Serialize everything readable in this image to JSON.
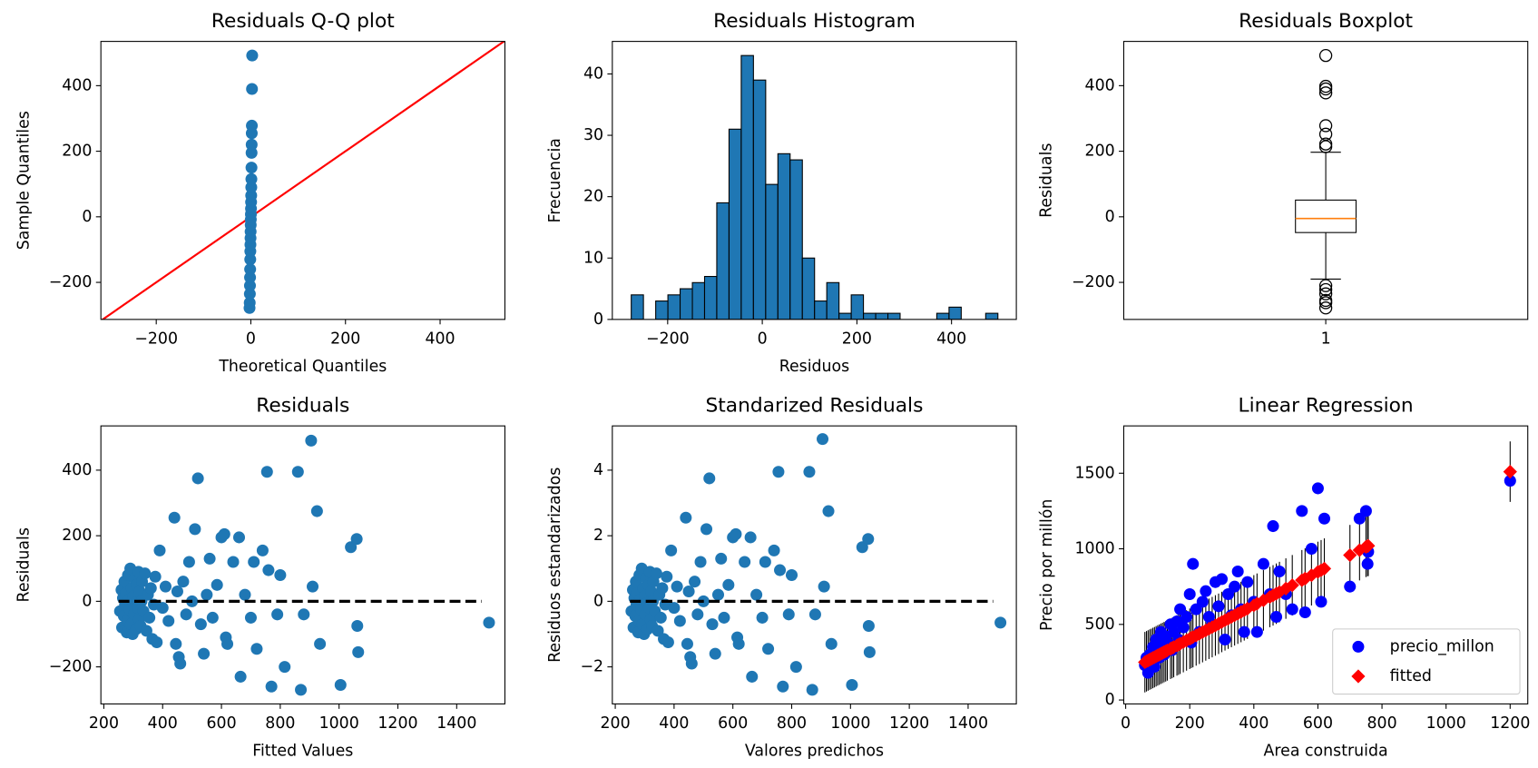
{
  "chart_data": [
    {
      "type": "qq",
      "title": "Residuals Q-Q plot",
      "xlabel": "Theoretical Quantiles",
      "ylabel": "Sample Quantiles",
      "x": [
        -2.8,
        -2.4,
        -2.1,
        -1.9,
        -1.7,
        -1.5,
        -1.3,
        -1.1,
        -0.9,
        -0.7,
        -0.5,
        -0.3,
        -0.1,
        0.1,
        0.3,
        0.5,
        0.7,
        0.9,
        1.1,
        1.3,
        1.5,
        1.7,
        1.9,
        2.1,
        2.4,
        2.8
      ],
      "values": [
        -278,
        -262,
        -235,
        -210,
        -185,
        -160,
        -130,
        -105,
        -85,
        -65,
        -45,
        -25,
        -8,
        8,
        25,
        45,
        65,
        90,
        115,
        150,
        195,
        220,
        255,
        278,
        390,
        492
      ],
      "color": "#1f77b4",
      "line_color": "#ff0000",
      "xlim": [
        -317,
        537
      ],
      "ylim": [
        -313,
        535
      ],
      "xticks": [
        {
          "value": -200,
          "label": "−200"
        },
        0,
        200,
        400
      ],
      "yticks": [
        {
          "value": -200,
          "label": "−200"
        },
        0,
        200,
        400
      ]
    },
    {
      "type": "histogram",
      "title": "Residuals Histogram",
      "xlabel": "Residuos",
      "ylabel": "Frecuencia",
      "bins": [
        -277.0,
        -251.2,
        -225.3,
        -199.5,
        -173.7,
        -147.8,
        -122.0,
        -96.2,
        -70.3,
        -44.5,
        -18.7,
        7.2,
        33.0,
        58.8,
        84.7,
        110.5,
        136.3,
        162.2,
        188.0,
        213.8,
        239.7,
        265.5,
        291.3,
        317.2,
        343.0,
        368.8,
        394.7,
        420.5,
        446.3,
        472.2,
        498.0
      ],
      "values": [
        4,
        0,
        3,
        4,
        5,
        6,
        7,
        19,
        31,
        43,
        39,
        22,
        27,
        26,
        10,
        3,
        6,
        1,
        4,
        1,
        1,
        1,
        0,
        0,
        0,
        1,
        2,
        0,
        0,
        1
      ],
      "color": "#1f77b4",
      "edgecolor": "#000000",
      "xlim": [
        -317,
        537
      ],
      "ylim": [
        0,
        45.3
      ],
      "xticks": [
        {
          "value": -200,
          "label": "−200"
        },
        0,
        200,
        400
      ],
      "yticks": [
        0,
        10,
        20,
        30,
        40
      ]
    },
    {
      "type": "boxplot",
      "title": "Residuals Boxplot",
      "ylabel": "Residuals",
      "boxes": [
        {
          "position": 1,
          "whislo": -190,
          "q1": -48,
          "med": -5,
          "q3": 51,
          "whishi": 197,
          "fliers": [
            492,
            398,
            390,
            378,
            278,
            252,
            222,
            214,
            -210,
            -222,
            -235,
            -255,
            -262,
            -278
          ]
        }
      ],
      "median_color": "#ff7f0e",
      "xlim": [
        0.5,
        1.5
      ],
      "ylim": [
        -313,
        535
      ],
      "xticks": [
        1
      ],
      "yticks": [
        {
          "value": -200,
          "label": "−200"
        },
        0,
        200,
        400
      ]
    },
    {
      "type": "scatter",
      "title": "Residuals",
      "xlabel": "Fitted Values",
      "ylabel": "Residuals",
      "x": [
        255,
        260,
        262,
        265,
        268,
        270,
        272,
        275,
        278,
        280,
        282,
        285,
        288,
        290,
        292,
        295,
        298,
        300,
        302,
        305,
        308,
        310,
        312,
        315,
        318,
        320,
        322,
        325,
        328,
        330,
        335,
        340,
        345,
        350,
        355,
        360,
        365,
        370,
        375,
        380,
        390,
        400,
        410,
        420,
        440,
        445,
        450,
        455,
        460,
        470,
        480,
        490,
        500,
        510,
        520,
        530,
        540,
        550,
        560,
        570,
        585,
        600,
        610,
        615,
        620,
        640,
        660,
        665,
        680,
        700,
        710,
        720,
        740,
        755,
        760,
        770,
        790,
        800,
        815,
        860,
        870,
        880,
        905,
        910,
        925,
        935,
        1005,
        1040,
        1060,
        1062,
        1065,
        1510
      ],
      "values": [
        -30,
        35,
        -80,
        10,
        -45,
        60,
        -10,
        25,
        -95,
        -60,
        80,
        5,
        -25,
        100,
        -70,
        40,
        -100,
        15,
        -40,
        70,
        -5,
        -85,
        50,
        -20,
        90,
        -55,
        30,
        -75,
        0,
        60,
        -30,
        85,
        -90,
        20,
        -50,
        40,
        -115,
        -10,
        75,
        -125,
        155,
        -20,
        45,
        -60,
        255,
        -130,
        30,
        -170,
        -190,
        60,
        -40,
        120,
        0,
        220,
        375,
        -70,
        -160,
        20,
        130,
        -50,
        50,
        195,
        205,
        -110,
        -130,
        120,
        195,
        -230,
        20,
        -50,
        120,
        -145,
        155,
        395,
        95,
        -260,
        -40,
        80,
        -200,
        395,
        -270,
        -40,
        490,
        45,
        275,
        -130,
        -255,
        165,
        190,
        -75,
        -155,
        -65
      ],
      "color": "#1f77b4",
      "hline": {
        "y": 0,
        "x": [
          250,
          1485
        ]
      },
      "xlim": [
        190,
        1564
      ],
      "ylim": [
        -313,
        535
      ],
      "xticks": [
        200,
        400,
        600,
        800,
        1000,
        1200,
        1400
      ],
      "yticks": [
        {
          "value": -200,
          "label": "−200"
        },
        0,
        200,
        400
      ]
    },
    {
      "type": "scatter",
      "title": "Standarized Residuals",
      "xlabel": "Valores predichos",
      "ylabel": "Residuos estandarizados",
      "x": [
        255,
        260,
        262,
        265,
        268,
        270,
        272,
        275,
        278,
        280,
        282,
        285,
        288,
        290,
        292,
        295,
        298,
        300,
        302,
        305,
        308,
        310,
        312,
        315,
        318,
        320,
        322,
        325,
        328,
        330,
        335,
        340,
        345,
        350,
        355,
        360,
        365,
        370,
        375,
        380,
        390,
        400,
        410,
        420,
        440,
        445,
        450,
        455,
        460,
        470,
        480,
        490,
        500,
        510,
        520,
        530,
        540,
        550,
        560,
        570,
        585,
        600,
        610,
        615,
        620,
        640,
        660,
        665,
        680,
        700,
        710,
        720,
        740,
        755,
        760,
        770,
        790,
        800,
        815,
        860,
        870,
        880,
        905,
        910,
        925,
        935,
        1005,
        1040,
        1060,
        1062,
        1065,
        1510
      ],
      "values": [
        -0.3,
        0.35,
        -0.8,
        0.1,
        -0.45,
        0.6,
        -0.1,
        0.25,
        -0.95,
        -0.6,
        0.8,
        0.05,
        -0.25,
        1.0,
        -0.7,
        0.4,
        -1.0,
        0.15,
        -0.4,
        0.7,
        -0.05,
        -0.85,
        0.5,
        -0.2,
        0.9,
        -0.55,
        0.3,
        -0.75,
        0,
        0.6,
        -0.3,
        0.85,
        -0.9,
        0.2,
        -0.5,
        0.4,
        -1.15,
        -0.1,
        0.75,
        -1.25,
        1.55,
        -0.2,
        0.45,
        -0.6,
        2.55,
        -1.3,
        0.3,
        -1.7,
        -1.9,
        0.6,
        -0.4,
        1.2,
        0,
        2.2,
        3.75,
        -0.7,
        -1.6,
        0.2,
        1.3,
        -0.5,
        0.5,
        1.95,
        2.05,
        -1.1,
        -1.3,
        1.2,
        1.95,
        -2.3,
        0.2,
        -0.5,
        1.2,
        -1.45,
        1.55,
        3.95,
        0.95,
        -2.6,
        -0.4,
        0.8,
        -2.0,
        3.95,
        -2.7,
        -0.4,
        4.95,
        0.45,
        2.75,
        -1.3,
        -2.55,
        1.65,
        1.9,
        -0.75,
        -1.55,
        -0.65
      ],
      "color": "#1f77b4",
      "hline": {
        "y": 0,
        "x": [
          250,
          1485
        ]
      },
      "xlim": [
        190,
        1564
      ],
      "ylim": [
        -3.13,
        5.35
      ],
      "xticks": [
        200,
        400,
        600,
        800,
        1000,
        1200,
        1400
      ],
      "yticks": [
        {
          "value": -2,
          "label": "−2"
        },
        0,
        2,
        4
      ]
    },
    {
      "type": "scatter",
      "title": "Linear Regression",
      "xlabel": "Area construida",
      "ylabel": "Precio por millón",
      "x": [
        60,
        65,
        70,
        75,
        80,
        85,
        90,
        95,
        100,
        105,
        110,
        115,
        120,
        125,
        130,
        140,
        145,
        150,
        160,
        165,
        170,
        180,
        190,
        200,
        205,
        210,
        220,
        230,
        240,
        250,
        260,
        270,
        280,
        290,
        300,
        310,
        320,
        330,
        340,
        350,
        360,
        370,
        380,
        400,
        410,
        430,
        450,
        460,
        470,
        480,
        500,
        520,
        550,
        560,
        580,
        600,
        610,
        620,
        700,
        730,
        750,
        755,
        757,
        1200
      ],
      "series": [
        {
          "name": "precio_millon",
          "color": "#0000ff",
          "marker": "circle",
          "values": [
            230,
            280,
            180,
            300,
            260,
            350,
            220,
            400,
            320,
            280,
            450,
            350,
            300,
            420,
            380,
            500,
            330,
            450,
            520,
            400,
            600,
            480,
            550,
            700,
            380,
            900,
            600,
            450,
            650,
            720,
            550,
            500,
            780,
            620,
            800,
            400,
            700,
            560,
            750,
            850,
            600,
            450,
            780,
            650,
            450,
            900,
            700,
            1150,
            550,
            850,
            700,
            600,
            1250,
            580,
            1000,
            1400,
            650,
            1200,
            750,
            1200,
            1250,
            900,
            980,
            1450
          ]
        },
        {
          "name": "fitted",
          "color": "#ff0000",
          "marker": "diamond",
          "error": 200,
          "values": [
            250,
            256,
            261,
            267,
            272,
            278,
            283,
            289,
            295,
            300,
            306,
            311,
            317,
            322,
            328,
            339,
            344,
            350,
            361,
            366,
            372,
            383,
            394,
            405,
            411,
            416,
            427,
            438,
            449,
            460,
            471,
            482,
            493,
            504,
            516,
            527,
            538,
            549,
            560,
            571,
            582,
            593,
            604,
            626,
            637,
            659,
            681,
            692,
            703,
            714,
            737,
            759,
            792,
            803,
            825,
            847,
            858,
            869,
            958,
            991,
            1013,
            1018,
            1020,
            1510
          ]
        }
      ],
      "legend": "lower right",
      "xlim": [
        -6,
        1255
      ],
      "ylim": [
        -26,
        1813
      ],
      "xticks": [
        0,
        200,
        400,
        600,
        800,
        1000,
        1200
      ],
      "yticks": [
        0,
        500,
        1000,
        1500
      ]
    }
  ]
}
